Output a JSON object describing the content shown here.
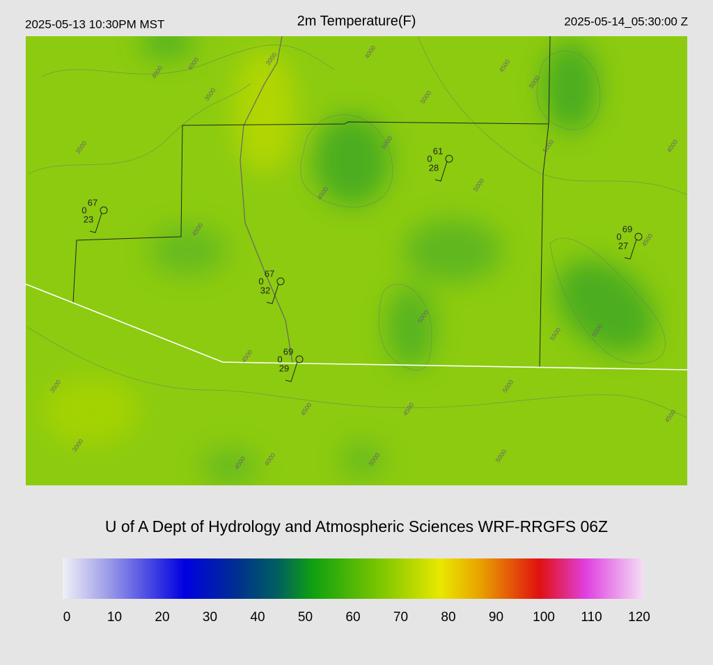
{
  "header": {
    "left": "2025-05-13 10:30PM MST",
    "title": "2m Temperature(F)",
    "right": "2025-05-14_05:30:00 Z"
  },
  "stations": [
    {
      "temp": 67,
      "mid": 0,
      "dew": 23
    },
    {
      "temp": 67,
      "mid": 0,
      "dew": 32
    },
    {
      "temp": 69,
      "mid": 0,
      "dew": 29
    },
    {
      "temp": 61,
      "mid": 0,
      "dew": 28
    },
    {
      "temp": 69,
      "mid": 0,
      "dew": 27
    }
  ],
  "contours": [
    4000,
    4000,
    3000,
    4000,
    3500,
    4500,
    5000,
    5000,
    3500,
    5000,
    5000,
    4000,
    5000,
    4500,
    4500,
    4500,
    5000,
    5500,
    6000,
    4500,
    3500,
    5000,
    4500,
    4500,
    3000,
    4500,
    4000,
    4500,
    5000,
    5000
  ],
  "footer": "U of A Dept of Hydrology and Atmospheric Sciences WRF-RRGFS 06Z",
  "colorbar": {
    "range": [
      0,
      120
    ],
    "ticks": [
      0,
      10,
      20,
      30,
      40,
      50,
      60,
      70,
      80,
      90,
      100,
      110,
      120
    ]
  }
}
